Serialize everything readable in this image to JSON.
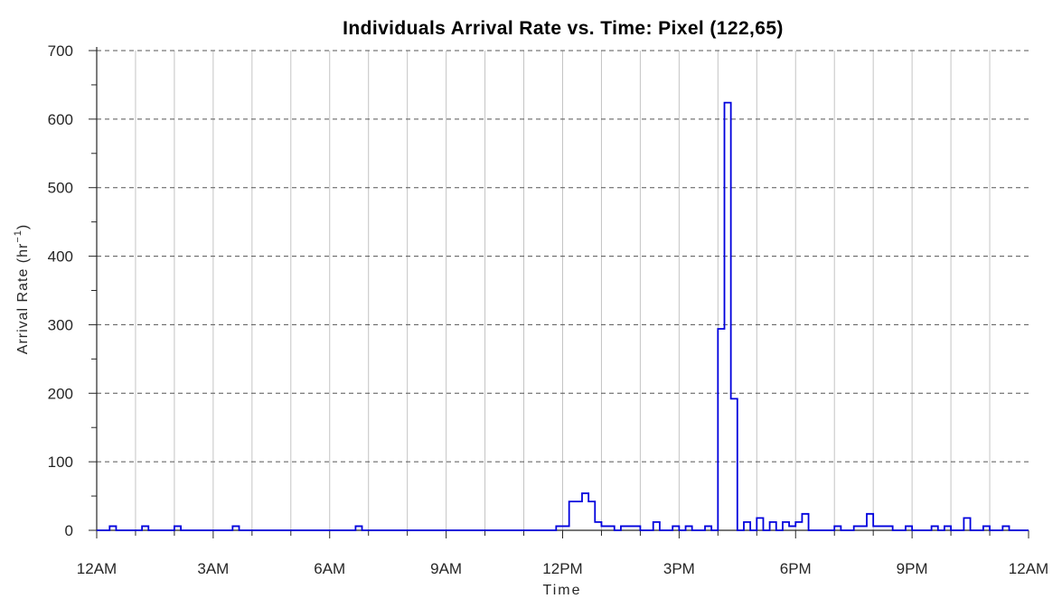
{
  "chart_data": {
    "type": "line",
    "style": "stairs",
    "title": "Individuals Arrival Rate vs. Time: Pixel (122,65)",
    "xlabel": "Time",
    "ylabel": "Arrival Rate (hr",
    "ylabel_superscript": "−1",
    "ylabel_close": ")",
    "xlim": [
      0,
      24
    ],
    "ylim": [
      0,
      700
    ],
    "x_ticks": [
      0,
      3,
      6,
      9,
      12,
      15,
      18,
      21,
      24
    ],
    "x_tick_labels": [
      "12AM",
      "3AM",
      "6AM",
      "9AM",
      "12PM",
      "3PM",
      "6PM",
      "9PM",
      "12AM"
    ],
    "y_ticks": [
      0,
      100,
      200,
      300,
      400,
      500,
      600,
      700
    ],
    "y_tick_labels": [
      "0",
      "100",
      "200",
      "300",
      "400",
      "500",
      "600",
      "700"
    ],
    "grid": {
      "x": "solid-light-gray",
      "y": "dashed-dark-gray",
      "x_minor": true
    },
    "line_color": "#0000dd",
    "series": [
      {
        "values": [
          [
            0.0,
            0
          ],
          [
            0.333,
            6
          ],
          [
            0.5,
            0
          ],
          [
            1.167,
            6
          ],
          [
            1.333,
            0
          ],
          [
            2.0,
            6
          ],
          [
            2.167,
            0
          ],
          [
            3.5,
            6
          ],
          [
            3.667,
            0
          ],
          [
            6.667,
            6
          ],
          [
            6.833,
            0
          ],
          [
            11.833,
            6
          ],
          [
            12.167,
            42
          ],
          [
            12.5,
            54
          ],
          [
            12.667,
            42
          ],
          [
            12.833,
            12
          ],
          [
            13.0,
            6
          ],
          [
            13.333,
            0
          ],
          [
            13.5,
            6
          ],
          [
            14.0,
            0
          ],
          [
            14.333,
            12
          ],
          [
            14.5,
            0
          ],
          [
            14.833,
            6
          ],
          [
            15.0,
            0
          ],
          [
            15.167,
            6
          ],
          [
            15.333,
            0
          ],
          [
            15.667,
            6
          ],
          [
            15.833,
            0
          ],
          [
            16.0,
            294
          ],
          [
            16.167,
            624
          ],
          [
            16.333,
            192
          ],
          [
            16.5,
            0
          ],
          [
            16.667,
            12
          ],
          [
            16.833,
            0
          ],
          [
            17.0,
            18
          ],
          [
            17.167,
            0
          ],
          [
            17.333,
            12
          ],
          [
            17.5,
            0
          ],
          [
            17.667,
            12
          ],
          [
            17.833,
            6
          ],
          [
            18.0,
            12
          ],
          [
            18.167,
            24
          ],
          [
            18.333,
            0
          ],
          [
            19.0,
            6
          ],
          [
            19.167,
            0
          ],
          [
            19.5,
            6
          ],
          [
            19.833,
            24
          ],
          [
            20.0,
            6
          ],
          [
            20.5,
            0
          ],
          [
            20.833,
            6
          ],
          [
            21.0,
            0
          ],
          [
            21.5,
            6
          ],
          [
            21.667,
            0
          ],
          [
            21.833,
            6
          ],
          [
            22.0,
            0
          ],
          [
            22.333,
            18
          ],
          [
            22.5,
            0
          ],
          [
            22.833,
            6
          ],
          [
            23.0,
            0
          ],
          [
            23.333,
            6
          ],
          [
            23.5,
            0
          ],
          [
            24.0,
            0
          ]
        ]
      }
    ]
  }
}
